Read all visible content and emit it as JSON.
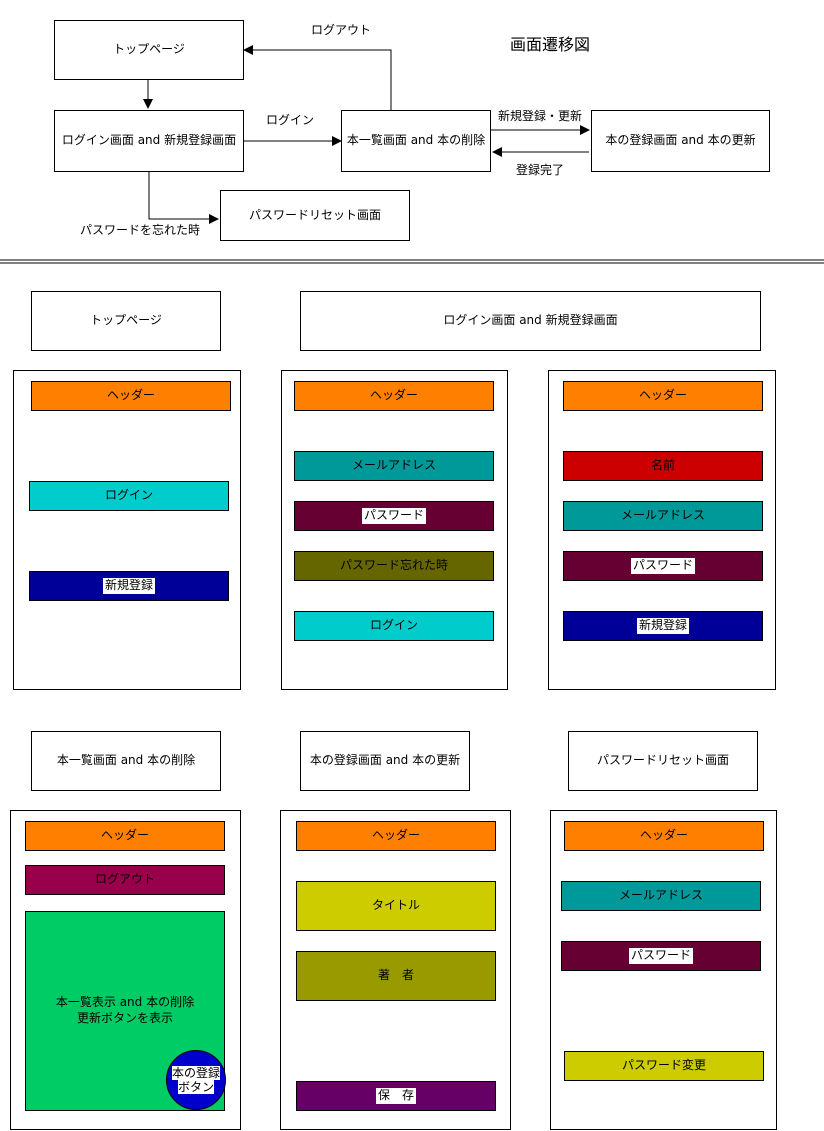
{
  "flow": {
    "title": "画面遷移図",
    "nodes": {
      "top": "トップページ",
      "login": "ログイン画面 and 新規登録画面",
      "list": "本一覧画面 and 本の削除",
      "register": "本の登録画面 and 本の更新",
      "reset": "パスワードリセット画面"
    },
    "edges": {
      "logout": "ログアウト",
      "login": "ログイン",
      "new_update": "新規登録・更新",
      "done": "登録完了",
      "forgot": "パスワードを忘れた時"
    }
  },
  "screens": {
    "top": {
      "title": "トップページ",
      "header": "ヘッダー",
      "login_btn": "ログイン",
      "signup_btn": "新規登録"
    },
    "login_signup": {
      "title": "ログイン画面 and 新規登録画面",
      "login_form": {
        "header": "ヘッダー",
        "email": "メールアドレス",
        "password": "パスワード",
        "forgot": "パスワード忘れた時",
        "login_btn": "ログイン"
      },
      "signup_form": {
        "header": "ヘッダー",
        "name": "名前",
        "email": "メールアドレス",
        "password": "パスワード",
        "signup_btn": "新規登録"
      }
    },
    "list": {
      "title": "本一覧画面 and 本の削除",
      "header": "ヘッダー",
      "logout_btn": "ログアウト",
      "content_line1": "本一覧表示 and 本の削除",
      "content_line2": "更新ボタンを表示",
      "fab_line1": "本の登録",
      "fab_line2": "ボタン"
    },
    "register": {
      "title": "本の登録画面 and 本の更新",
      "header": "ヘッダー",
      "title_field": "タイトル",
      "author_field": "著　者",
      "save_btn": "保　存"
    },
    "reset": {
      "title": "パスワードリセット画面",
      "header": "ヘッダー",
      "email": "メールアドレス",
      "password": "パスワード",
      "change_btn": "パスワード変更"
    }
  },
  "colors": {
    "header": "#ff8000",
    "cyan": "#00cccc",
    "navy": "#000099",
    "teal": "#009999",
    "wine": "#660033",
    "olive": "#666600",
    "red": "#cc0000",
    "magenta": "#99004c",
    "green": "#00cc66",
    "blue": "#0000cc",
    "yellow": "#cccc00",
    "olive_light": "#999900",
    "purple": "#660066"
  }
}
